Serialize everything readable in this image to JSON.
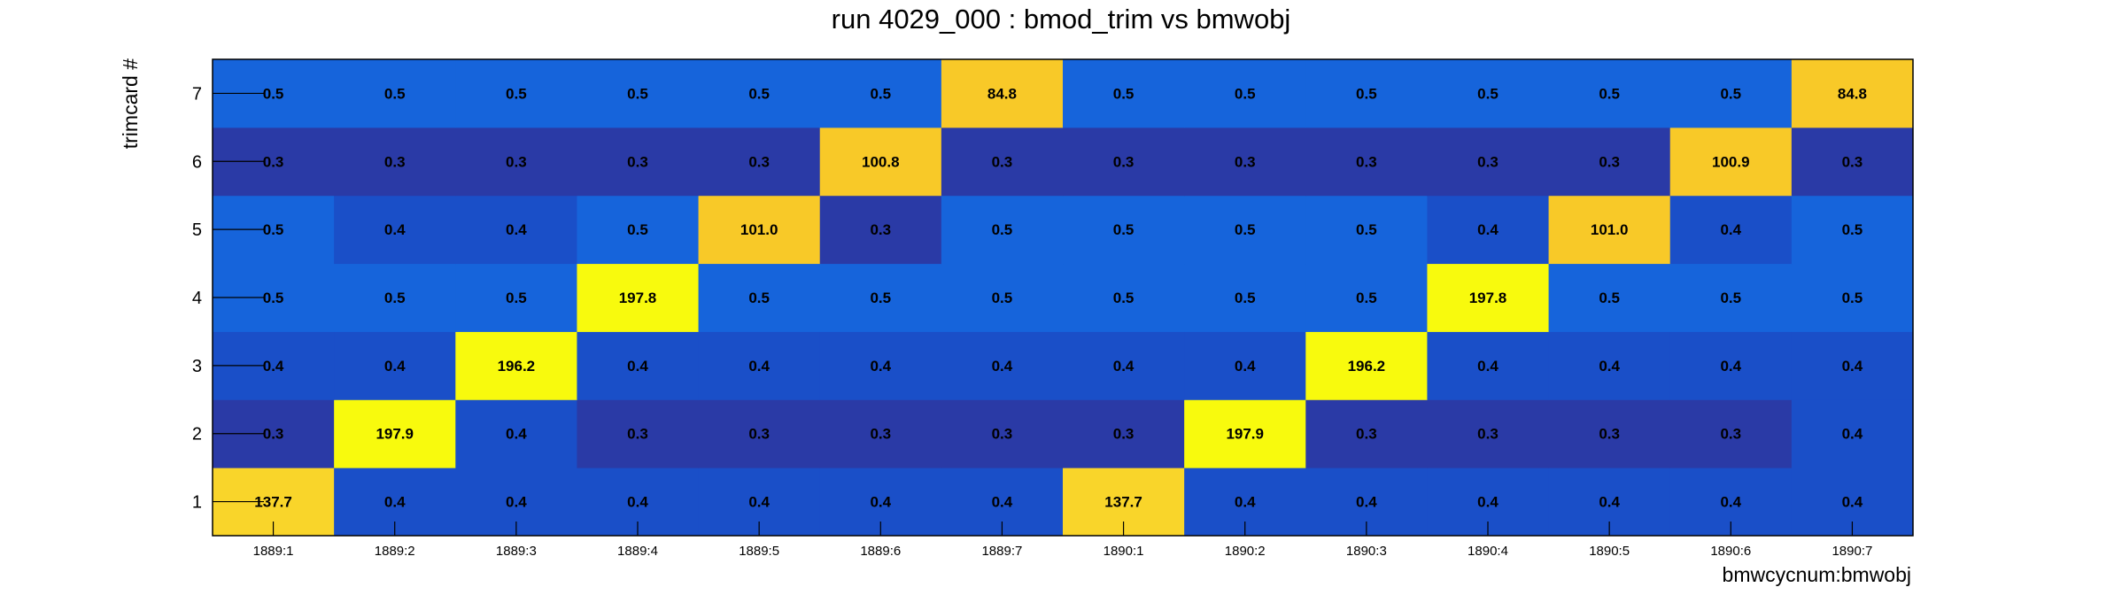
{
  "chart_data": {
    "type": "heatmap",
    "title": "run 4029_000 : bmod_trim vs bmwobj",
    "xlabel": "bmwcycnum:bmwobj",
    "ylabel": "trimcard #",
    "x_categories": [
      "1889:1",
      "1889:2",
      "1889:3",
      "1889:4",
      "1889:5",
      "1889:6",
      "1889:7",
      "1890:1",
      "1890:2",
      "1890:3",
      "1890:4",
      "1890:5",
      "1890:6",
      "1890:7"
    ],
    "y_categories": [
      "1",
      "2",
      "3",
      "4",
      "5",
      "6",
      "7"
    ],
    "z": [
      [
        137.7,
        0.4,
        0.4,
        0.4,
        0.4,
        0.4,
        0.4,
        137.7,
        0.4,
        0.4,
        0.4,
        0.4,
        0.4,
        0.4
      ],
      [
        0.3,
        197.9,
        0.4,
        0.3,
        0.3,
        0.3,
        0.3,
        0.3,
        197.9,
        0.3,
        0.3,
        0.3,
        0.3,
        0.4
      ],
      [
        0.4,
        0.4,
        196.2,
        0.4,
        0.4,
        0.4,
        0.4,
        0.4,
        0.4,
        196.2,
        0.4,
        0.4,
        0.4,
        0.4
      ],
      [
        0.5,
        0.5,
        0.5,
        197.8,
        0.5,
        0.5,
        0.5,
        0.5,
        0.5,
        0.5,
        197.8,
        0.5,
        0.5,
        0.5
      ],
      [
        0.5,
        0.4,
        0.4,
        0.5,
        101.0,
        0.3,
        0.5,
        0.5,
        0.5,
        0.5,
        0.4,
        101.0,
        0.4,
        0.5
      ],
      [
        0.3,
        0.3,
        0.3,
        0.3,
        0.3,
        100.8,
        0.3,
        0.3,
        0.3,
        0.3,
        0.3,
        0.3,
        100.9,
        0.3
      ],
      [
        0.5,
        0.5,
        0.5,
        0.5,
        0.5,
        0.5,
        84.8,
        0.5,
        0.5,
        0.5,
        0.5,
        0.5,
        0.5,
        84.8
      ]
    ],
    "z_format_decimals": 1,
    "colors": {
      "low_dark": "#2a3aa6",
      "low_mid": "#1a4fc8",
      "low_light": "#1664db",
      "mid_high": "#f8c928",
      "high": "#f9d52a",
      "max": "#f8fa0d"
    },
    "grid": false,
    "legend": false
  }
}
